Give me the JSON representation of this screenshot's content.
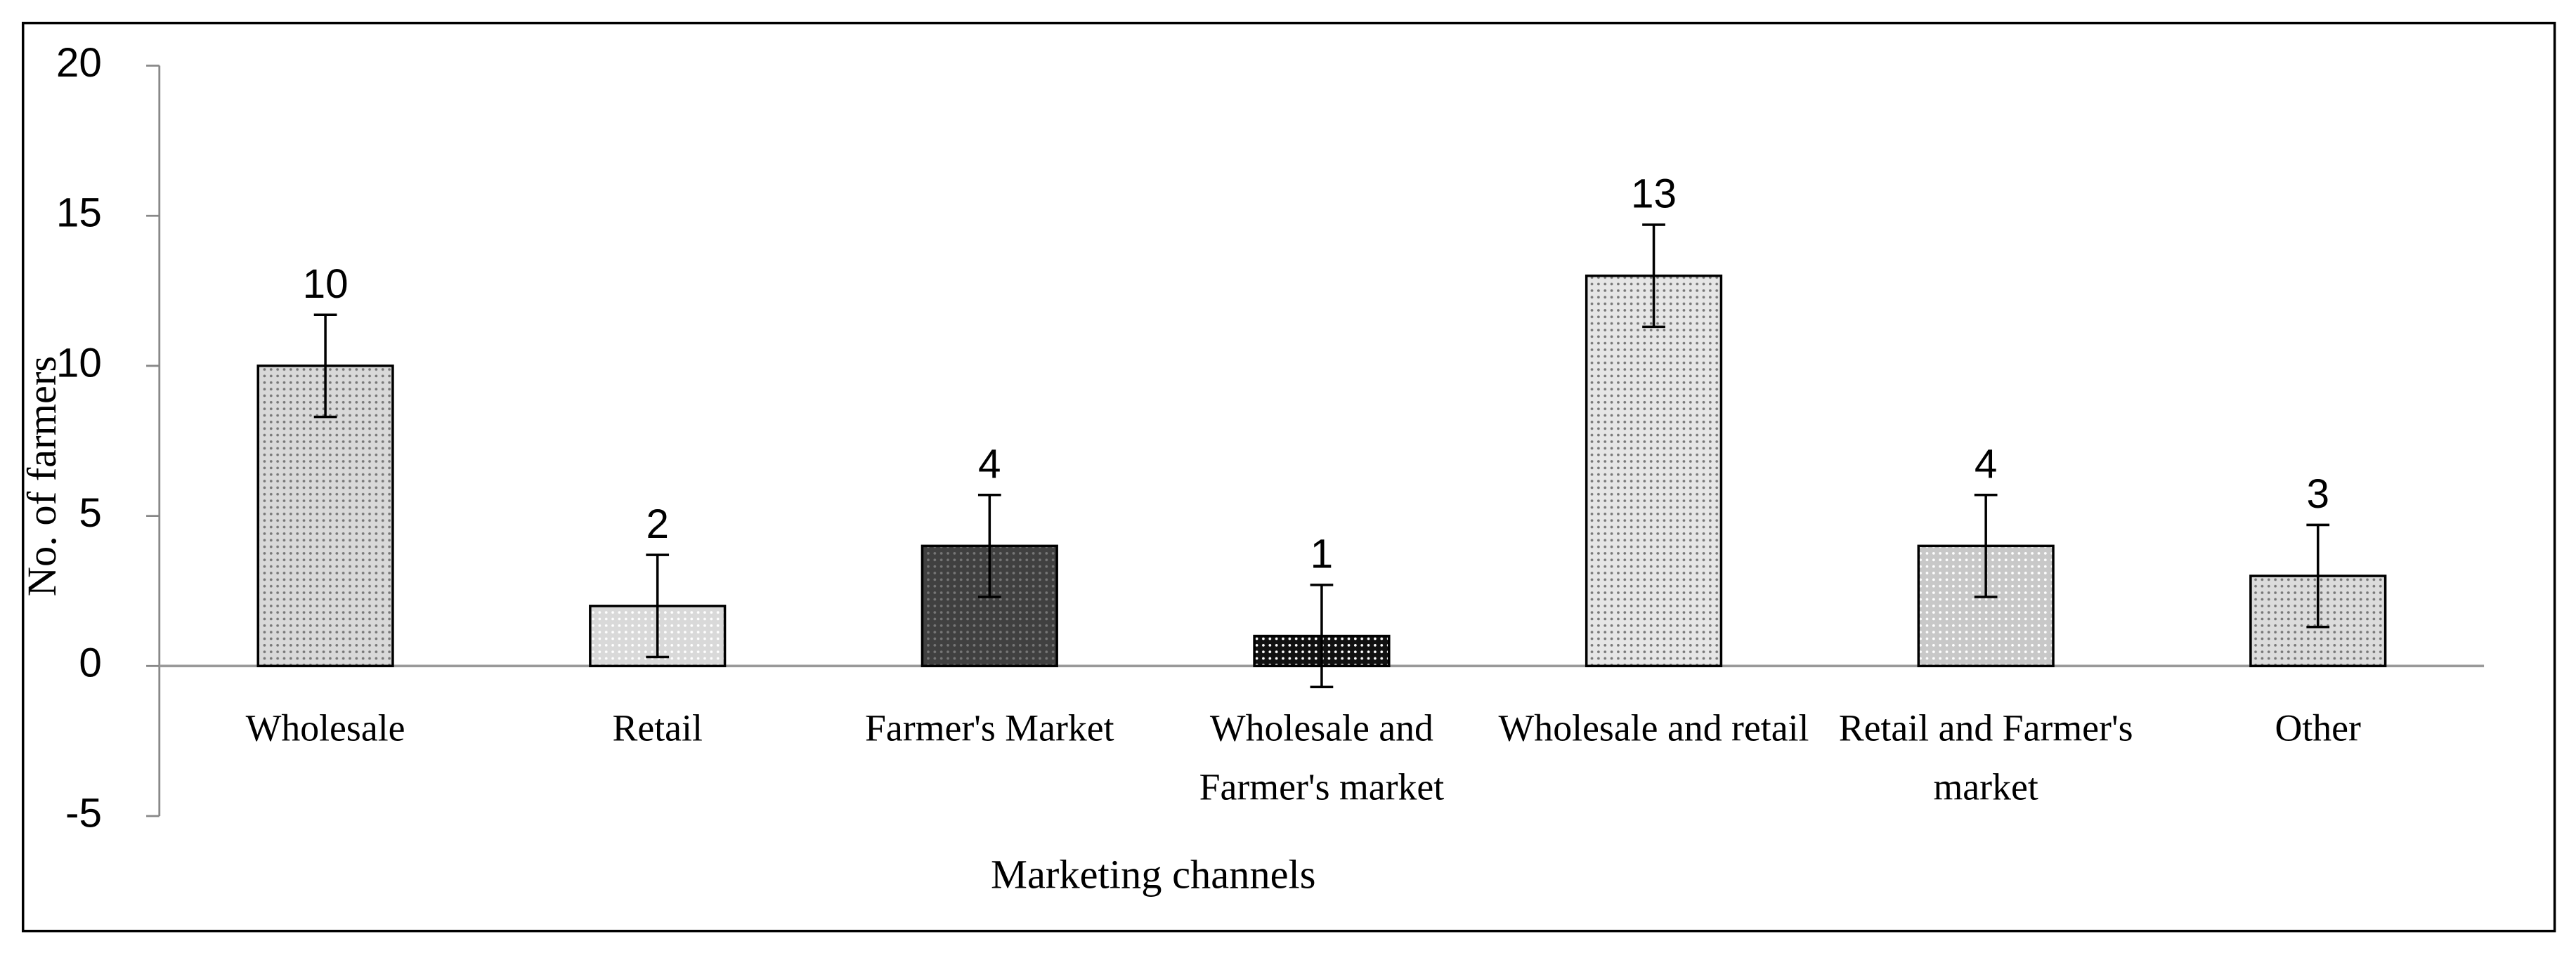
{
  "chart_data": {
    "type": "bar",
    "x_label": "Marketing channels",
    "y_label": "No. of farmers",
    "categories": [
      "Wholesale",
      "Retail",
      "Farmer's Market",
      "Wholesale and Farmer's market",
      "Wholesale and retail",
      "Retail and Farmer's market",
      "Other"
    ],
    "values": [
      10,
      2,
      4,
      1,
      13,
      4,
      3
    ],
    "errors": [
      1.7,
      1.7,
      1.7,
      1.7,
      1.7,
      1.7,
      1.7
    ],
    "colors": [
      "#d9d9d9",
      "#d9d9d9",
      "#404040",
      "#111111",
      "#e6e6e6",
      "#c8c8c8",
      "#dcdcdc"
    ],
    "ylim": [
      -5,
      20
    ],
    "yticks": [
      -5,
      0,
      5,
      10,
      15,
      20
    ]
  }
}
